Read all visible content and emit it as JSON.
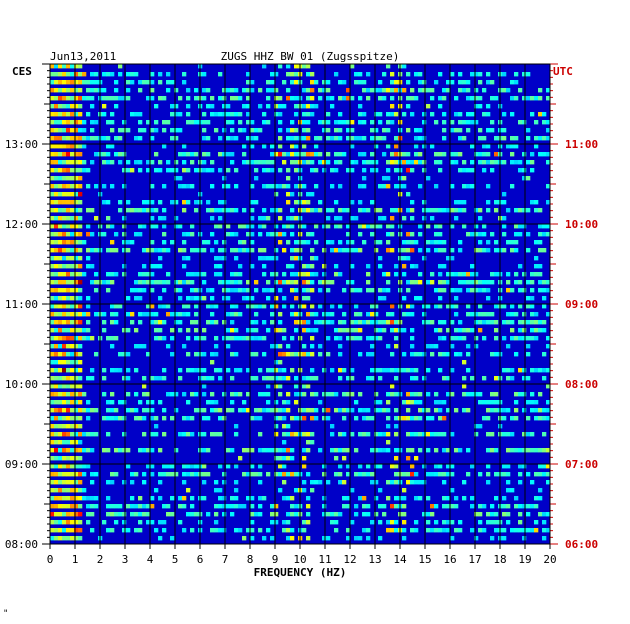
{
  "chart_data": {
    "type": "heatmap",
    "date": "Jun13,2011",
    "title": "ZUGS HHZ BW 01 (Zugsspitze)",
    "xlabel": "FREQUENCY (HZ)",
    "left_axis_label": "CES",
    "right_axis_label": "UTC",
    "xlim": [
      0,
      20
    ],
    "x_ticks": [
      "0",
      "1",
      "2",
      "3",
      "4",
      "5",
      "6",
      "7",
      "8",
      "9",
      "10",
      "11",
      "12",
      "13",
      "14",
      "15",
      "16",
      "17",
      "18",
      "19",
      "20"
    ],
    "left_ticks": [
      "13:00",
      "12:00",
      "11:00",
      "10:00",
      "09:00",
      "08:00"
    ],
    "right_ticks": [
      "11:00",
      "10:00",
      "09:00",
      "08:00",
      "07:00",
      "06:00"
    ],
    "tick_values_hours_ago": [
      5,
      4,
      3,
      2,
      1,
      0
    ],
    "time_span_hours": 6,
    "colors": {
      "background": "#0000c8",
      "grid": "#000000",
      "right_axis": "#cc0000",
      "text": "#000000"
    },
    "energy_bands_hz": [
      [
        0,
        1.2
      ],
      [
        9,
        10.5
      ],
      [
        13.5,
        14.6
      ]
    ],
    "colormap": "jet"
  },
  "footer_mark": "\""
}
